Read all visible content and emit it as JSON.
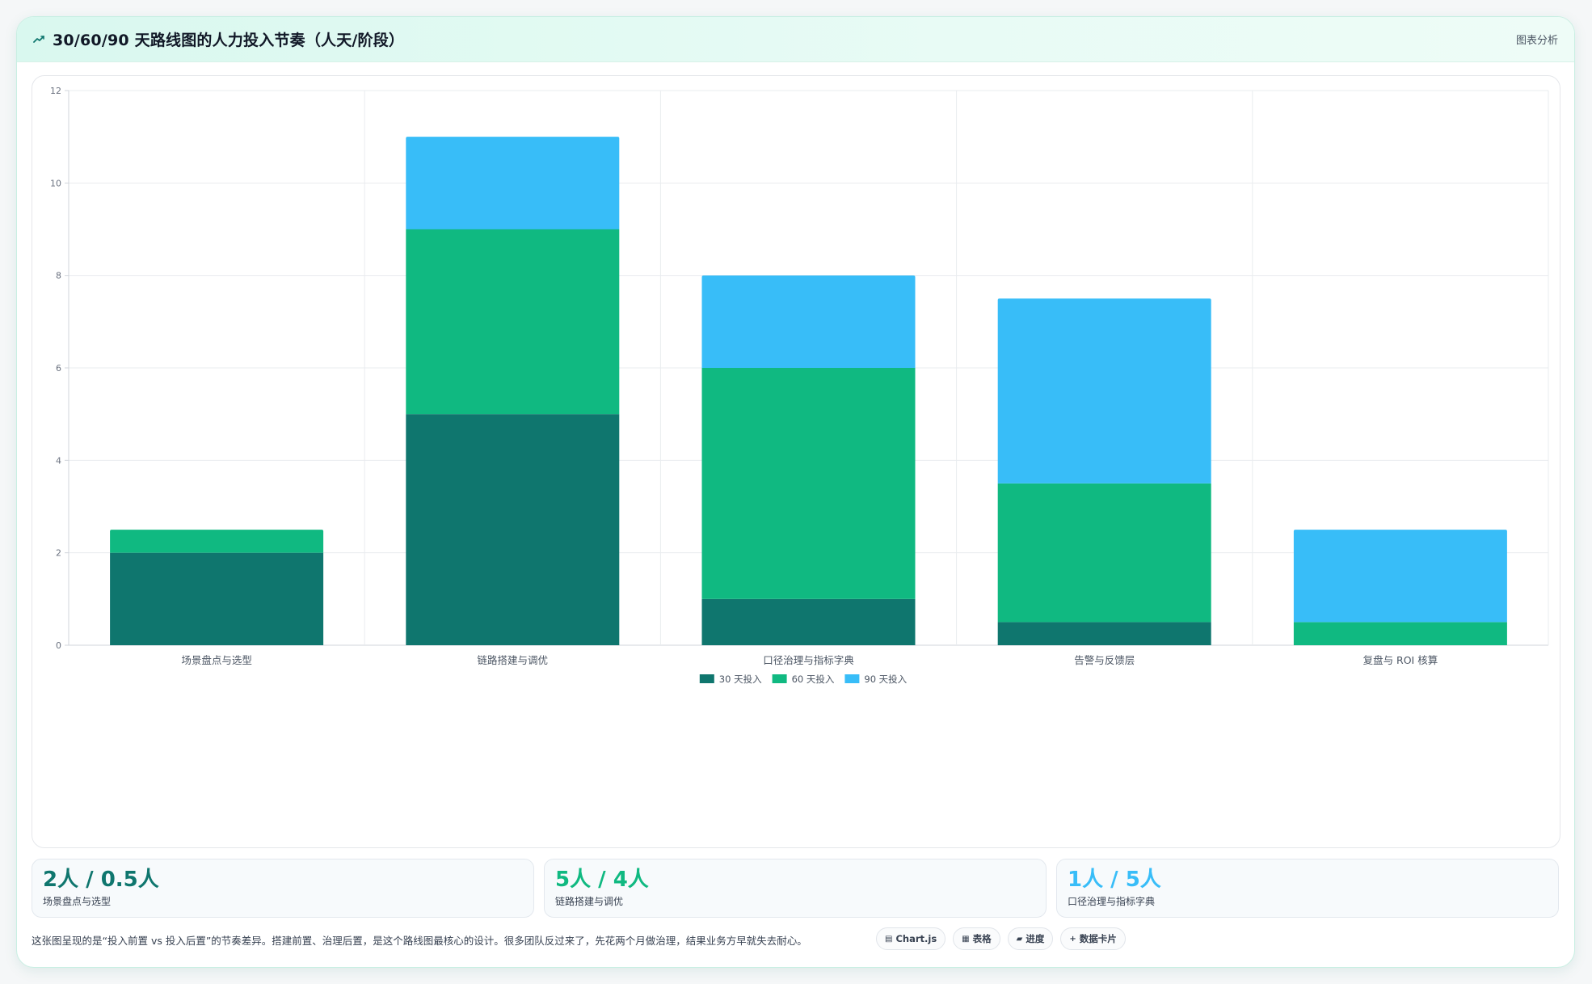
{
  "header": {
    "title": "30/60/90 天路线图的人力投入节奏（人天/阶段）",
    "tag": "图表分析"
  },
  "colors": {
    "s30": "#0f766e",
    "s60": "#10b981",
    "s90": "#38bdf8",
    "accent": "#0f766e"
  },
  "chart_data": {
    "type": "bar",
    "stacked": true,
    "categories": [
      "场景盘点与选型",
      "链路搭建与调优",
      "口径治理与指标字典",
      "告警与反馈层",
      "复盘与 ROI 核算"
    ],
    "series": [
      {
        "name": "30 天投入",
        "color": "#0f766e",
        "values": [
          2,
          5,
          1,
          0.5,
          0
        ]
      },
      {
        "name": "60 天投入",
        "color": "#10b981",
        "values": [
          0.5,
          4,
          5,
          3,
          0.5
        ]
      },
      {
        "name": "90 天投入",
        "color": "#38bdf8",
        "values": [
          0,
          2,
          2,
          4,
          2
        ]
      }
    ],
    "ylim": [
      0,
      12
    ],
    "yticks": [
      "0",
      "2",
      "4",
      "6",
      "8",
      "10",
      "12"
    ],
    "grid": true,
    "legend_position": "bottom"
  },
  "stats": [
    {
      "value": "2人 / 0.5人",
      "label": "场景盘点与选型",
      "color": "#0f766e"
    },
    {
      "value": "5人 / 4人",
      "label": "链路搭建与调优",
      "color": "#10b981"
    },
    {
      "value": "1人 / 5人",
      "label": "口径治理与指标字典",
      "color": "#38bdf8"
    }
  ],
  "footer": {
    "text": "这张图呈现的是“投入前置 vs 投入后置”的节奏差异。搭建前置、治理后置，是这个路线图最核心的设计。很多团队反过来了，先花两个月做治理，结果业务方早就失去耐心。",
    "chips": [
      {
        "icon": "chart-icon",
        "glyph": "▤",
        "label": "Chart.js"
      },
      {
        "icon": "table-icon",
        "glyph": "▦",
        "label": "表格"
      },
      {
        "icon": "progress-icon",
        "glyph": "▰",
        "label": "进度"
      },
      {
        "icon": "card-icon",
        "glyph": "+",
        "label": "数据卡片"
      }
    ]
  }
}
